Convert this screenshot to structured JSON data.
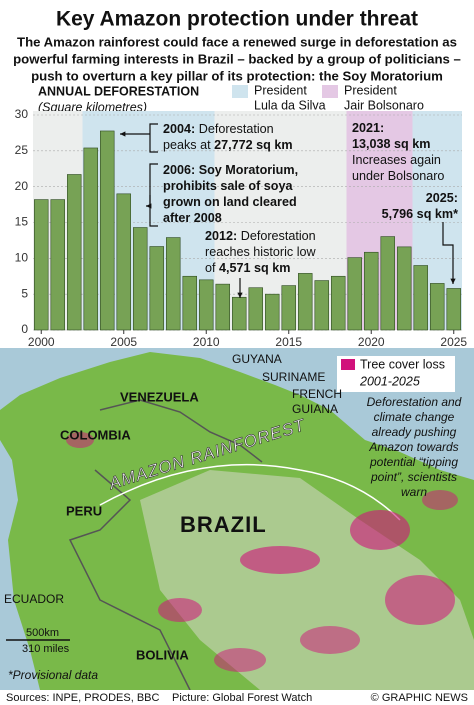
{
  "chart_data": {
    "type": "bar",
    "title": "Key Amazon protection under threat",
    "subtitle": [
      "The Amazon rainforest could face a renewed surge in deforestation as",
      "powerful farming interests in Brazil – backed by a group of politicians –",
      "push to overturn a key pillar of its protection: the Soy Moratorium"
    ],
    "y_label": "ANNUAL DEFORESTATION",
    "y_unit": "(Square kilometres)",
    "x": [
      2000,
      2001,
      2002,
      2003,
      2004,
      2005,
      2006,
      2007,
      2008,
      2009,
      2010,
      2011,
      2012,
      2013,
      2014,
      2015,
      2016,
      2017,
      2018,
      2019,
      2020,
      2021,
      2022,
      2023,
      2024,
      2025
    ],
    "values": [
      18.2,
      18.2,
      21.7,
      25.4,
      27.772,
      19.0,
      14.3,
      11.65,
      12.9,
      7.5,
      7.0,
      6.4,
      4.571,
      5.9,
      5.0,
      6.2,
      7.9,
      6.9,
      7.5,
      10.1,
      10.85,
      13.038,
      11.6,
      9.0,
      6.5,
      5.796
    ],
    "color": "#77a255",
    "xlim": [
      1999.5,
      2025.5
    ],
    "xticks": [
      2000,
      2005,
      2010,
      2015,
      2020,
      2025
    ],
    "ylim": [
      0,
      30
    ],
    "yticks": [
      0,
      5,
      10,
      15,
      20,
      25,
      30
    ],
    "grid": true,
    "periods": [
      {
        "legend": [
          "President",
          "Lula da Silva"
        ],
        "color": "#cfe4ee",
        "start": 2002.5,
        "end": 2010.5
      },
      {
        "legend": [
          "President",
          "Jair Bolsonaro"
        ],
        "color": "#e4c8e4",
        "start": 2018.5,
        "end": 2022.5
      },
      {
        "color": "#cfe4ee",
        "start": 2022.5,
        "end": 2025.5
      }
    ],
    "annotations": [
      {
        "lines": [
          [
            {
              "t": "2004:",
              "b": true
            },
            {
              "t": " Deforestation",
              "b": false
            }
          ],
          [
            {
              "t": "peaks at ",
              "b": false
            },
            {
              "t": "27,772 sq km",
              "b": true
            }
          ]
        ]
      },
      {
        "lines": [
          [
            {
              "t": "2006: Soy Moratorium,",
              "b": true
            }
          ],
          [
            {
              "t": "prohibits sale of soya",
              "b": true
            }
          ],
          [
            {
              "t": "grown on land cleared",
              "b": true
            }
          ],
          [
            {
              "t": "after 2008",
              "b": true
            }
          ]
        ]
      },
      {
        "lines": [
          [
            {
              "t": "2012:",
              "b": true
            },
            {
              "t": " Deforestation",
              "b": false
            }
          ],
          [
            {
              "t": "reaches historic low",
              "b": false
            }
          ],
          [
            {
              "t": "of ",
              "b": false
            },
            {
              "t": "4,571 sq km",
              "b": true
            }
          ]
        ]
      },
      {
        "lines": [
          [
            {
              "t": "2021:",
              "b": true
            }
          ],
          [
            {
              "t": "13,038 sq km",
              "b": true
            }
          ],
          [
            {
              "t": "Increases again",
              "b": false
            }
          ],
          [
            {
              "t": "under Bolsonaro",
              "b": false
            }
          ]
        ]
      },
      {
        "lines": [
          [
            {
              "t": "2025:",
              "b": true
            }
          ],
          [
            {
              "t": "5,796 sq km*",
              "b": true
            }
          ]
        ]
      }
    ]
  },
  "map": {
    "legend": [
      "Tree cover loss",
      "2001-2025"
    ],
    "countries": [
      "GUYANA",
      "SURINAME",
      "FRENCH",
      "GUIANA",
      "VENEZUELA",
      "COLOMBIA",
      "PERU",
      "BRAZIL",
      "ECUADOR",
      "BOLIVIA"
    ],
    "region": "AMAZON RAINFOREST",
    "caption": [
      "Deforestation and",
      "climate change",
      "already pushing",
      "Amazon towards",
      "potential “tipping",
      "point”, scientists",
      "warn"
    ],
    "scale": [
      "500km",
      "310 miles"
    ],
    "note": "*Provisional data"
  },
  "footer": {
    "sources": "Sources: INPE, PRODES, BBC",
    "picture": "Picture: Global Forest Watch",
    "credit": "© GRAPHIC NEWS"
  }
}
